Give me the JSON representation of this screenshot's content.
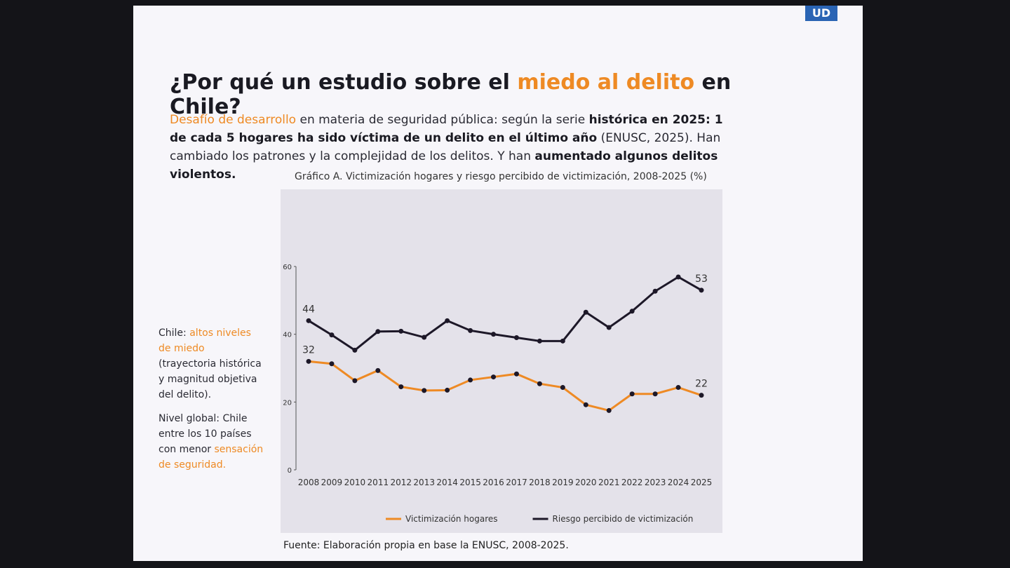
{
  "logo": "UD",
  "slide": {
    "title": [
      {
        "text": "¿Por qué un estudio sobre el ",
        "style": "bold"
      },
      {
        "text": "miedo al delito",
        "style": "orange"
      },
      {
        "text": " en Chile?",
        "style": "bold"
      }
    ],
    "intro": [
      {
        "text": "Desafío de desarrollo",
        "style": "orange"
      },
      {
        "text": " en materia de seguridad pública: según la serie ",
        "style": "plain"
      },
      {
        "text": "histórica en 2025: 1 de cada 5 hogares ha sido víctima de un delito en el último año",
        "style": "bold"
      },
      {
        "text": " (ENUSC, 2025). Han cambiado los patrones y la complejidad de los delitos. Y han ",
        "style": "plain"
      },
      {
        "text": "aumentado algunos delitos violentos.",
        "style": "bold"
      }
    ],
    "notes": [
      [
        {
          "text": "Chile: ",
          "style": "plain"
        },
        {
          "text": "altos niveles de miedo",
          "style": "orange"
        },
        {
          "text": " (trayectoria histórica y magnitud objetiva del delito).",
          "style": "plain"
        }
      ],
      [
        {
          "text": "Nivel global: Chile entre los 10 países con menor ",
          "style": "plain"
        },
        {
          "text": "sensación de seguridad.",
          "style": "orange"
        }
      ]
    ],
    "source": "Fuente: Elaboración propia en base la ENUSC, 2008-2025."
  },
  "chart_data": {
    "type": "line",
    "title": "Gráfico A. Victimización hogares y riesgo percibido de victimización, 2008-2025 (%)",
    "categories": [
      "2008",
      "2009",
      "2010",
      "2011",
      "2012",
      "2013",
      "2014",
      "2015",
      "2016",
      "2017",
      "2018",
      "2019",
      "2020",
      "2021",
      "2022",
      "2023",
      "2024",
      "2025"
    ],
    "series": [
      {
        "name": "Victimización hogares",
        "color": "#ee8a24",
        "values": [
          32,
          31.3,
          26.3,
          29.3,
          24.5,
          23.4,
          23.5,
          26.5,
          27.4,
          28.3,
          25.4,
          24.3,
          19.2,
          17.5,
          22.4,
          22.4,
          24.3,
          22
        ]
      },
      {
        "name": "Riesgo percibido de victimización",
        "color": "#1d1828",
        "values": [
          44,
          39.8,
          35.3,
          40.8,
          40.9,
          39.1,
          44,
          41.1,
          40,
          39,
          38,
          38,
          46.5,
          42,
          46.8,
          52.7,
          56.9,
          53
        ]
      }
    ],
    "ylim": [
      0,
      60
    ],
    "yticks": [
      0,
      20,
      40,
      60
    ],
    "grid": false,
    "legend": "bottom"
  }
}
